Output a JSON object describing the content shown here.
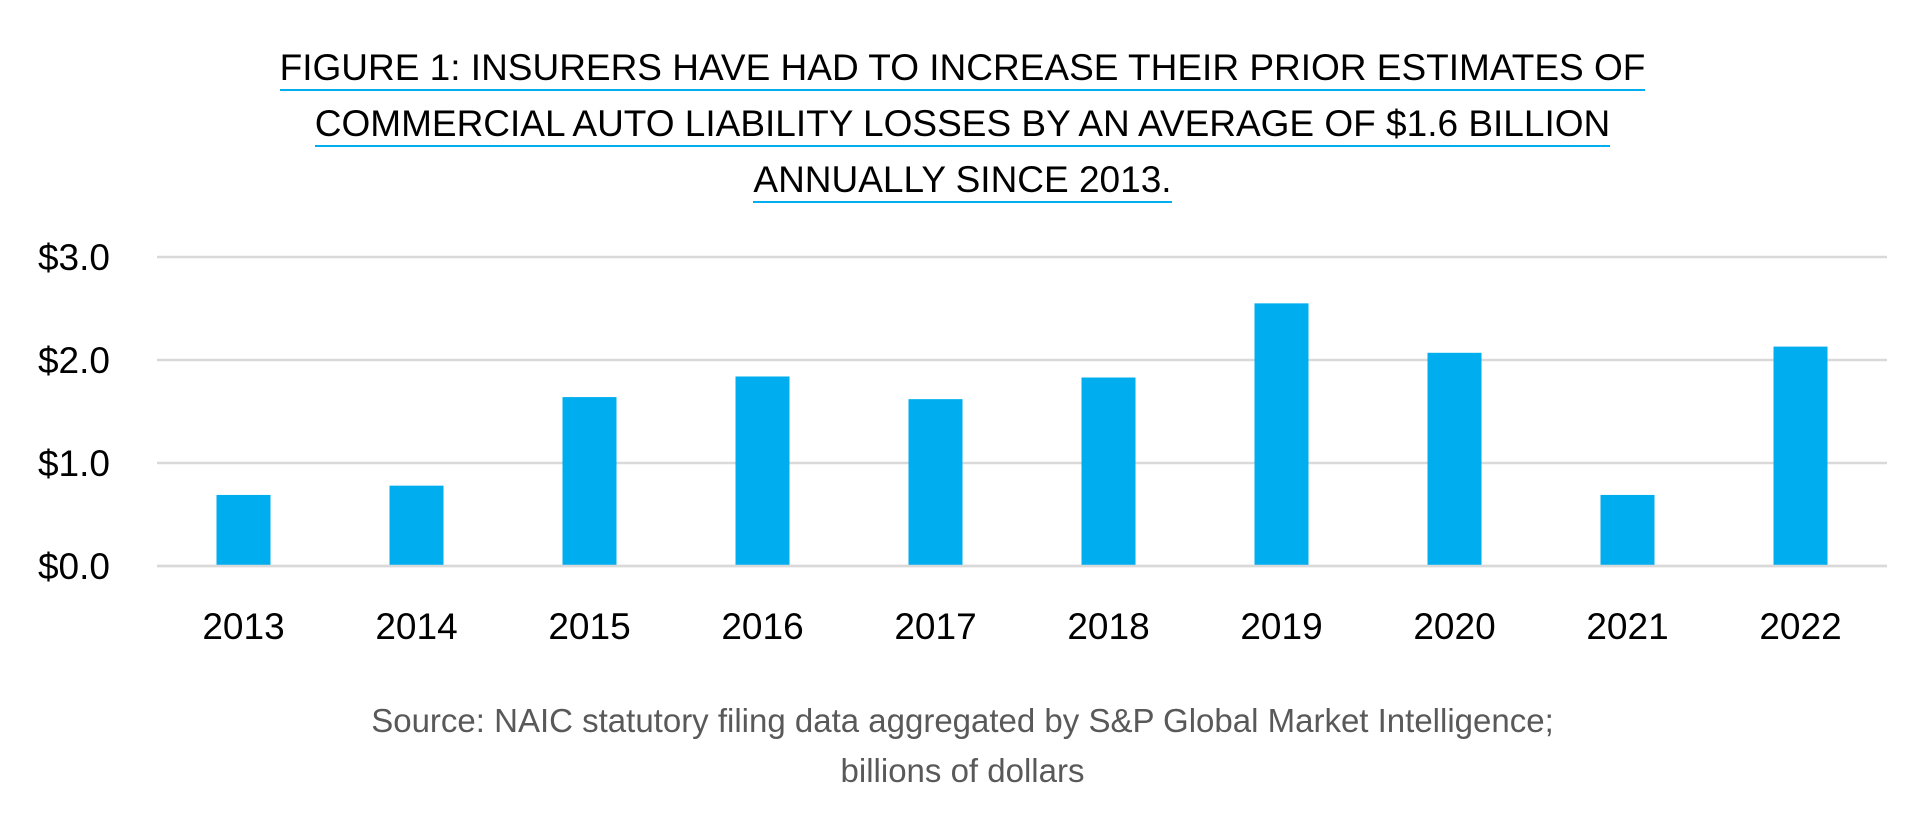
{
  "title_lines": [
    "FIGURE 1: INSURERS HAVE HAD TO INCREASE THEIR PRIOR ESTIMATES OF",
    "COMMERCIAL AUTO LIABILITY LOSSES BY AN AVERAGE OF $1.6 BILLION",
    "ANNUALLY SINCE 2013."
  ],
  "source_lines": [
    "Source: NAIC statutory filing data aggregated by S&P Global Market Intelligence;",
    "billions of dollars"
  ],
  "colors": {
    "bar": "#00aeef",
    "gridline": "#d9d9d9",
    "axis_text": "#000000",
    "source_text": "#595959",
    "title_underline": "#00aeef"
  },
  "chart_data": {
    "type": "bar",
    "title": "FIGURE 1: INSURERS HAVE HAD TO INCREASE THEIR PRIOR ESTIMATES OF COMMERCIAL AUTO LIABILITY LOSSES BY AN AVERAGE OF $1.6 BILLION ANNUALLY SINCE 2013.",
    "categories": [
      "2013",
      "2014",
      "2015",
      "2016",
      "2017",
      "2018",
      "2019",
      "2020",
      "2021",
      "2022"
    ],
    "values": [
      0.69,
      0.78,
      1.64,
      1.84,
      1.62,
      1.83,
      2.55,
      2.07,
      0.69,
      2.13
    ],
    "ylim": [
      0,
      3
    ],
    "yticks": [
      0,
      1,
      2,
      3
    ],
    "ytick_labels": [
      "$0.0",
      "$1.0",
      "$2.0",
      "$3.0"
    ],
    "xlabel": "",
    "ylabel": "",
    "grid": true,
    "legend": "none",
    "unit": "billions of dollars"
  }
}
